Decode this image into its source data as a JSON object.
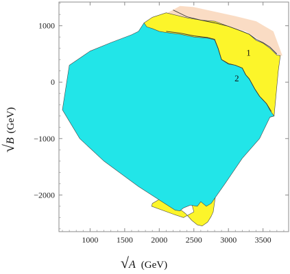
{
  "chart_data": {
    "type": "area",
    "xlabel": {
      "root": "√",
      "var": "A",
      "unit": "(GeV)"
    },
    "ylabel": {
      "root": "√",
      "var": "B",
      "unit": "(GeV)"
    },
    "xlim": [
      550,
      3870
    ],
    "ylim": [
      -2650,
      1420
    ],
    "x_ticks": [
      1000,
      1500,
      2000,
      2500,
      3000,
      3500
    ],
    "y_ticks": [
      1000,
      0,
      -1000,
      -2000
    ],
    "x_tick_labels": [
      "1000",
      "1500",
      "2000",
      "2500",
      "3000",
      "3500"
    ],
    "y_tick_labels": [
      "1000",
      "0",
      "−1000",
      "−2000"
    ],
    "colors": {
      "peach": "#fadcc4",
      "yellow": "#fcf52a",
      "cyan": "#22e5e8",
      "edge": "#444444"
    },
    "regions": [
      {
        "color": "peach",
        "polygon": [
          [
            1850,
            1000
          ],
          [
            2000,
            1150
          ],
          [
            2300,
            1350
          ],
          [
            2500,
            1330
          ],
          [
            2800,
            1250
          ],
          [
            3100,
            1170
          ],
          [
            3400,
            1080
          ],
          [
            3650,
            900
          ],
          [
            3780,
            470
          ],
          [
            3750,
            470
          ],
          [
            3700,
            500
          ],
          [
            3600,
            620
          ],
          [
            3500,
            700
          ],
          [
            3250,
            900
          ],
          [
            3000,
            980
          ],
          [
            2600,
            1050
          ],
          [
            2300,
            1100
          ],
          [
            2100,
            1050
          ],
          [
            1950,
            990
          ]
        ]
      },
      {
        "color": "yellow",
        "polygon": [
          [
            1780,
            1050
          ],
          [
            1900,
            1150
          ],
          [
            2100,
            1230
          ],
          [
            2400,
            1140
          ],
          [
            2600,
            1100
          ],
          [
            2800,
            1080
          ],
          [
            3000,
            990
          ],
          [
            3200,
            900
          ],
          [
            3300,
            850
          ],
          [
            3400,
            740
          ],
          [
            3500,
            690
          ],
          [
            3600,
            600
          ],
          [
            3700,
            480
          ],
          [
            3750,
            470
          ],
          [
            3720,
            200
          ],
          [
            3660,
            -600
          ],
          [
            3600,
            -620
          ],
          [
            3500,
            -400
          ],
          [
            3380,
            -240
          ],
          [
            3230,
            -80
          ],
          [
            3100,
            50
          ],
          [
            3000,
            -100
          ],
          [
            2950,
            -1000
          ],
          [
            2850,
            -1700
          ],
          [
            2780,
            -2300
          ],
          [
            2750,
            -2380
          ],
          [
            2700,
            -2480
          ],
          [
            2620,
            -2550
          ],
          [
            2550,
            -2530
          ],
          [
            2470,
            -2450
          ],
          [
            2380,
            -2330
          ],
          [
            2330,
            -2280
          ],
          [
            2250,
            -2250
          ],
          [
            2000,
            -2080
          ],
          [
            1900,
            -2150
          ],
          [
            1890,
            -2200
          ],
          [
            2200,
            -2340
          ],
          [
            2350,
            -2400
          ],
          [
            2500,
            -2300
          ]
        ]
      },
      {
        "color": "cyan",
        "polygon": [
          [
            700,
            300
          ],
          [
            1000,
            550
          ],
          [
            1300,
            700
          ],
          [
            1600,
            840
          ],
          [
            1700,
            900
          ],
          [
            1780,
            1050
          ],
          [
            1820,
            980
          ],
          [
            1900,
            950
          ],
          [
            2000,
            900
          ],
          [
            2100,
            880
          ],
          [
            2300,
            850
          ],
          [
            2500,
            800
          ],
          [
            2700,
            780
          ],
          [
            2800,
            750
          ],
          [
            2850,
            600
          ],
          [
            2900,
            400
          ],
          [
            3000,
            320
          ],
          [
            3100,
            300
          ],
          [
            3200,
            250
          ],
          [
            3250,
            130
          ],
          [
            3300,
            60
          ],
          [
            3380,
            -120
          ],
          [
            3450,
            -250
          ],
          [
            3550,
            -380
          ],
          [
            3600,
            -500
          ],
          [
            3660,
            -600
          ],
          [
            3600,
            -620
          ],
          [
            3450,
            -1000
          ],
          [
            3200,
            -1350
          ],
          [
            2950,
            -1800
          ],
          [
            2750,
            -2150
          ],
          [
            2680,
            -2200
          ],
          [
            2600,
            -2120
          ],
          [
            2550,
            -2200
          ],
          [
            2450,
            -2180
          ],
          [
            2350,
            -2230
          ],
          [
            2300,
            -2280
          ],
          [
            2230,
            -2270
          ],
          [
            1700,
            -1850
          ],
          [
            1200,
            -1400
          ],
          [
            850,
            -1000
          ],
          [
            600,
            -490
          ]
        ]
      }
    ],
    "contours": [
      {
        "name": "1",
        "points": [
          [
            2200,
            1280
          ],
          [
            2400,
            1160
          ],
          [
            2600,
            1100
          ],
          [
            2800,
            1050
          ],
          [
            3000,
            990
          ],
          [
            3200,
            900
          ],
          [
            3300,
            850
          ],
          [
            3400,
            760
          ],
          [
            3500,
            700
          ],
          [
            3600,
            620
          ],
          [
            3700,
            500
          ]
        ]
      },
      {
        "name": "2",
        "points": [
          [
            2100,
            900
          ],
          [
            2300,
            870
          ],
          [
            2500,
            820
          ],
          [
            2700,
            790
          ],
          [
            2800,
            760
          ],
          [
            2850,
            600
          ],
          [
            2900,
            400
          ],
          [
            3000,
            330
          ],
          [
            3100,
            300
          ],
          [
            3200,
            250
          ],
          [
            3250,
            130
          ],
          [
            3300,
            60
          ],
          [
            3380,
            -120
          ],
          [
            3450,
            -250
          ],
          [
            3550,
            -380
          ],
          [
            3620,
            -520
          ]
        ]
      }
    ],
    "annotations": [
      {
        "text": "1",
        "x": 3290,
        "y": 470
      },
      {
        "text": "2",
        "x": 3120,
        "y": 15
      }
    ]
  }
}
